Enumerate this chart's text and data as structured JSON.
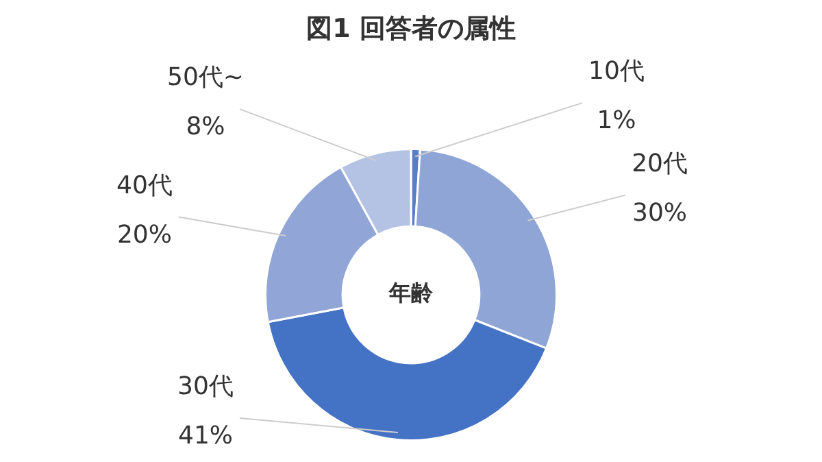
{
  "chart_data": {
    "type": "donut",
    "title": "図1 回答者の属性",
    "annotations": [
      "年齢"
    ],
    "categories": [
      "10代",
      "20代",
      "30代",
      "40代",
      "50代~"
    ],
    "values": [
      1,
      30,
      41,
      20,
      8
    ],
    "value_labels": [
      "1%",
      "30%",
      "41%",
      "20%",
      "8%"
    ],
    "colors": [
      "#5a7dc8",
      "#8fa5d6",
      "#4472c4",
      "#91a6d7",
      "#b4c2e4"
    ],
    "legend": false
  }
}
